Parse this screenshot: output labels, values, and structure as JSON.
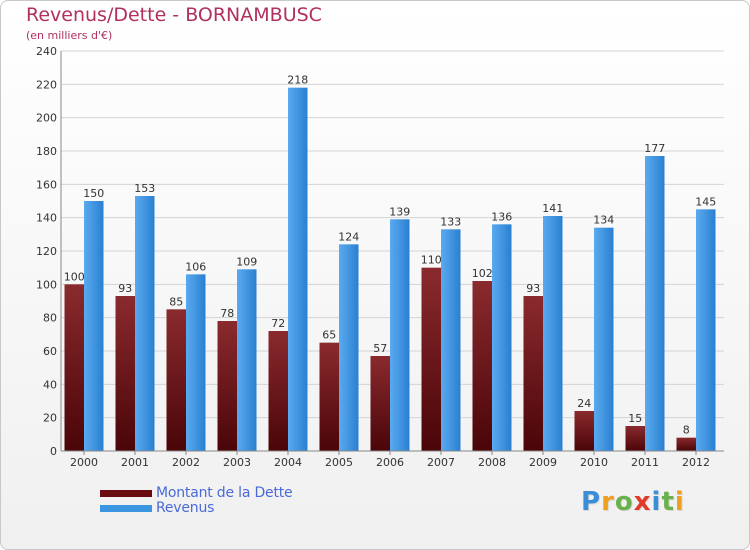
{
  "header": {
    "title": "Revenus/Dette - BORNAMBUSC",
    "subtitle": "(en milliers d'€)"
  },
  "legend": {
    "items": [
      {
        "label": "Montant de la Dette",
        "color": "#6b0d10"
      },
      {
        "label": "Revenus",
        "color": "#3a96e0"
      }
    ]
  },
  "logo": {
    "text": "Proxiti",
    "letters": [
      {
        "ch": "P",
        "color": "#3a8ed8"
      },
      {
        "ch": "r",
        "color": "#f0a020"
      },
      {
        "ch": "o",
        "color": "#6ab04c"
      },
      {
        "ch": "x",
        "color": "#e03a2a"
      },
      {
        "ch": "i",
        "color": "#3a8ed8"
      },
      {
        "ch": "t",
        "color": "#6ab04c"
      },
      {
        "ch": "i",
        "color": "#f0a020"
      }
    ]
  },
  "chart_data": {
    "type": "bar",
    "title": "Revenus/Dette - BORNAMBUSC",
    "subtitle": "(en milliers d'€)",
    "categories": [
      "2000",
      "2001",
      "2002",
      "2003",
      "2004",
      "2005",
      "2006",
      "2007",
      "2008",
      "2009",
      "2010",
      "2011",
      "2012"
    ],
    "series": [
      {
        "name": "Montant de la Dette",
        "color": "#6b0d10",
        "values": [
          100,
          93,
          85,
          78,
          72,
          65,
          57,
          110,
          102,
          93,
          24,
          15,
          8
        ]
      },
      {
        "name": "Revenus",
        "color": "#3a96e0",
        "values": [
          150,
          153,
          106,
          109,
          218,
          124,
          139,
          133,
          136,
          141,
          134,
          177,
          145
        ]
      }
    ],
    "ylim": [
      0,
      240
    ],
    "yticks": [
      0,
      20,
      40,
      60,
      80,
      100,
      120,
      140,
      160,
      180,
      200,
      220,
      240
    ],
    "grid": true,
    "legend_position": "bottom-left"
  }
}
